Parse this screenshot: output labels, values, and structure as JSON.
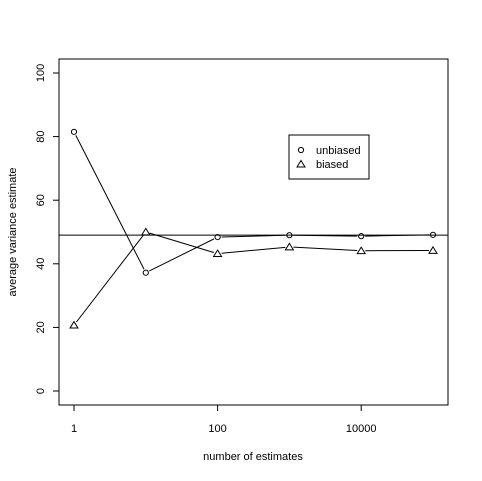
{
  "chart_data": {
    "type": "line",
    "title": "",
    "xlabel": "number of estimates",
    "ylabel": "average variance estimate",
    "x_scale": "log",
    "x_ticks": [
      1,
      100,
      10000
    ],
    "x_tick_labels": [
      "1",
      "100",
      "10000"
    ],
    "xlim": [
      1,
      100000
    ],
    "ylim": [
      0,
      100
    ],
    "y_ticks": [
      0,
      20,
      40,
      60,
      80,
      100
    ],
    "y_tick_labels": [
      "0",
      "20",
      "40",
      "60",
      "80",
      "100"
    ],
    "x": [
      1,
      10,
      100,
      1000,
      10000,
      100000
    ],
    "series": [
      {
        "name": "unbiased",
        "marker": "circle",
        "values": [
          81.5,
          37.2,
          48.4,
          49.0,
          48.7,
          49.1
        ]
      },
      {
        "name": "biased",
        "marker": "triangle",
        "values": [
          20.7,
          50.0,
          43.2,
          45.3,
          44.1,
          44.2
        ]
      }
    ],
    "reference_line": 49.0,
    "legend_position": "upper-right-inset",
    "grid": false,
    "colors": {
      "line": "#000000",
      "background": "#ffffff"
    }
  }
}
